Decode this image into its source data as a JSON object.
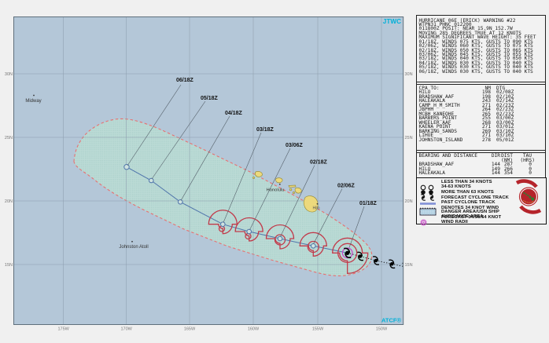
{
  "map": {
    "agency_label": "JTWC",
    "atcf_label": "ATCF®",
    "lat_labels": [
      "30N",
      "25N",
      "20N",
      "15N"
    ],
    "lon_labels": [
      "175W",
      "170W",
      "165W",
      "160W",
      "155W",
      "150W"
    ],
    "places": {
      "midway": "Midway",
      "johnston": "Johnston Atoll",
      "honolulu": "Honolulu",
      "hilo": "Hilo"
    },
    "track_labels": [
      "06/18Z",
      "05/18Z",
      "04/18Z",
      "03/18Z",
      "03/06Z",
      "02/18Z",
      "02/06Z",
      "01/18Z"
    ]
  },
  "warning": {
    "lines": [
      "HURRICANE 06E (ERICK) WARNING #22",
      "WTPN31 PHNC 012200",
      "011800Z POSIT: NEAR 15.9N 152.7W",
      "MOVING 285 DEGREES TRUE AT 12 KNOTS",
      "MAXIMUM SIGNIFICANT WAVE HEIGHT: 35 FEET",
      "01/18Z, WINDS 075 KTS, GUSTS TO 090 KTS",
      "02/06Z, WINDS 060 KTS, GUSTS TO 075 KTS",
      "02/18Z, WINDS 050 KTS, GUSTS TO 065 KTS",
      "03/06Z, WINDS 045 KTS, GUSTS TO 055 KTS",
      "03/18Z, WINDS 040 KTS, GUSTS TO 050 KTS",
      "04/18Z, WINDS 030 KTS, GUSTS TO 040 KTS",
      "05/18Z, WINDS 030 KTS, GUSTS TO 040 KTS",
      "06/18Z, WINDS 030 KTS, GUSTS TO 040 KTS"
    ]
  },
  "cpa": {
    "title": "CPA TO:",
    "col_nm": "NM",
    "col_dtg": "DTG",
    "rows": [
      [
        "HILO",
        "198",
        "02/08Z"
      ],
      [
        "BRADSHAW_AAF",
        "198",
        "02/10Z"
      ],
      [
        "HALEAKALA",
        "243",
        "02/14Z"
      ],
      [
        "CAMP_H_M_SMITH",
        "271",
        "02/23Z"
      ],
      [
        "JBPHH",
        "264",
        "02/23Z"
      ],
      [
        "MCBH_KANEOHE",
        "265",
        "02/23Z"
      ],
      [
        "BARBERS_POINT",
        "255",
        "03/00Z"
      ],
      [
        "WHEELER_AAF",
        "268",
        "03/00Z"
      ],
      [
        "KAENA_POINT",
        "271",
        "03/01Z"
      ],
      [
        "BARKING_SANDS",
        "269",
        "03/10Z"
      ],
      [
        "LIHUE",
        "271",
        "03/10Z"
      ],
      [
        "JOHNSTON_ISLAND",
        "278",
        "05/01Z"
      ]
    ]
  },
  "bearing": {
    "title": "BEARING AND DISTANCE",
    "col_dir": "DIR",
    "col_dist": "DIST",
    "col_tau": "TAU",
    "unit_dist": "(NM)",
    "unit_tau": "(HRS)",
    "rows": [
      [
        "BRADSHAW_AAF",
        "144",
        "287",
        "0"
      ],
      [
        "HILO",
        "149",
        "266",
        "0"
      ],
      [
        "HALEAKALA",
        "144",
        "354",
        "0"
      ]
    ]
  },
  "legend": {
    "items": [
      "LESS THAN 34 KNOTS",
      "34-63 KNOTS",
      "MORE THAN 63 KNOTS",
      "FORECAST CYCLONE TRACK",
      "PAST CYCLONE TRACK",
      "DENOTES 34 KNOT WIND DANGER AREA/USN SHIP AVOIDANCE AREA",
      "FORECAST 34/50/64 KNOT WIND RADII"
    ]
  },
  "colors": {
    "ocean": "#b4c7d8",
    "danger_area_fill": "#bcdcd6",
    "danger_border_red": "#e87070",
    "wind_radii_red": "#c23b4b",
    "forecast_track_blue": "#4f74ab",
    "accent_cyan": "#00b0d8",
    "radii_magenta": "#c840c8",
    "island_yellow": "#ecd97c"
  }
}
